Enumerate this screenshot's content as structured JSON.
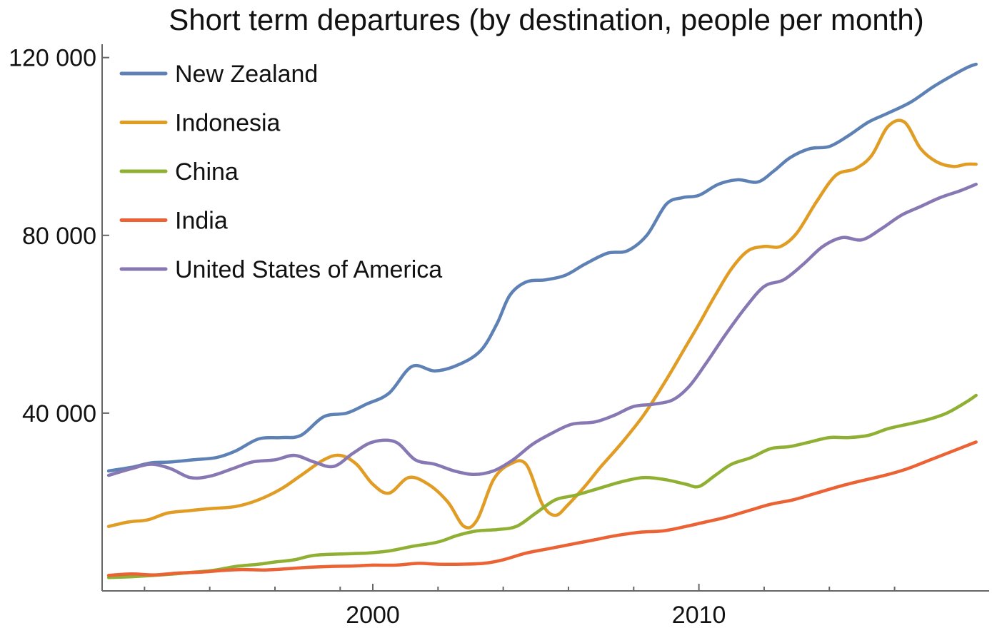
{
  "chart_data": {
    "type": "line",
    "title": "Short term departures (by destination, people per month)",
    "xlabel": "",
    "ylabel": "",
    "xlim": [
      1991.7,
      2018.9
    ],
    "ylim": [
      0,
      123000
    ],
    "x_ticks": [
      {
        "value": 2000,
        "label": "2000"
      },
      {
        "value": 2010,
        "label": "2010"
      }
    ],
    "x_minor_ticks": [
      1993,
      1995,
      1997,
      1999,
      2002,
      2004,
      2006,
      2008,
      2012,
      2014,
      2016
    ],
    "y_ticks": [
      {
        "value": 40000,
        "label": "40 000"
      },
      {
        "value": 80000,
        "label": "80 000"
      },
      {
        "value": 120000,
        "label": "120 000"
      }
    ],
    "grid": false,
    "legend_position": "top-left",
    "series": [
      {
        "name": "New Zealand",
        "color": "#5e81b5",
        "x": [
          1991.9,
          1992.6,
          1993.2,
          1993.8,
          1994.5,
          1995.2,
          1995.8,
          1996.5,
          1997.2,
          1997.8,
          1998.5,
          1999.2,
          1999.8,
          2000.5,
          2001.2,
          2001.9,
          2002.6,
          2003.3,
          2003.8,
          2004.2,
          2004.7,
          2005.3,
          2005.9,
          2006.5,
          2007.2,
          2007.8,
          2008.4,
          2009.0,
          2009.5,
          2010.0,
          2010.6,
          2011.2,
          2011.8,
          2012.3,
          2012.8,
          2013.4,
          2014.0,
          2014.6,
          2015.2,
          2015.8,
          2016.5,
          2017.2,
          2017.9,
          2018.3,
          2018.5
        ],
        "values": [
          27000,
          27800,
          28800,
          29000,
          29500,
          30000,
          31500,
          34200,
          34500,
          35000,
          39200,
          40000,
          42000,
          44500,
          50500,
          49500,
          50800,
          54000,
          60000,
          66500,
          69500,
          70000,
          71000,
          73500,
          76000,
          76500,
          80000,
          87000,
          88500,
          89000,
          91500,
          92500,
          92000,
          94500,
          97500,
          99500,
          100000,
          102500,
          105500,
          107500,
          110000,
          113500,
          116500,
          118000,
          118500
        ]
      },
      {
        "name": "Indonesia",
        "color": "#e19c24",
        "x": [
          1991.9,
          1992.5,
          1993.1,
          1993.7,
          1994.3,
          1995.0,
          1995.8,
          1996.5,
          1997.2,
          1997.8,
          1998.5,
          1999.0,
          1999.5,
          2000.0,
          2000.5,
          2001.1,
          2001.7,
          2002.3,
          2002.8,
          2003.2,
          2003.7,
          2004.2,
          2004.7,
          2005.2,
          2005.6,
          2006.0,
          2006.5,
          2007.0,
          2007.6,
          2008.3,
          2009.0,
          2009.6,
          2010.0,
          2010.5,
          2011.0,
          2011.5,
          2012.0,
          2012.5,
          2013.0,
          2013.6,
          2014.2,
          2014.8,
          2015.3,
          2015.8,
          2016.3,
          2016.8,
          2017.3,
          2017.8,
          2018.2,
          2018.5
        ],
        "values": [
          14500,
          15500,
          16000,
          17500,
          18000,
          18500,
          19000,
          20500,
          23000,
          26000,
          29500,
          30500,
          28500,
          24000,
          22000,
          25500,
          24000,
          20000,
          14500,
          16000,
          25000,
          28500,
          28500,
          19500,
          17000,
          19500,
          23500,
          28000,
          33000,
          39500,
          47500,
          55000,
          60000,
          66500,
          72500,
          76500,
          77500,
          77500,
          80500,
          87500,
          93500,
          95000,
          98000,
          104500,
          105500,
          99500,
          96500,
          95500,
          96000,
          96000
        ]
      },
      {
        "name": "China",
        "color": "#8fb032",
        "x": [
          1991.9,
          1992.6,
          1993.3,
          1993.9,
          1994.5,
          1995.1,
          1995.8,
          1996.5,
          1997.0,
          1997.6,
          1998.2,
          1999.0,
          1999.8,
          2000.5,
          2001.2,
          2002.0,
          2002.6,
          2003.2,
          2003.8,
          2004.4,
          2005.0,
          2005.6,
          2006.2,
          2006.9,
          2007.6,
          2008.3,
          2009.0,
          2009.6,
          2010.0,
          2010.5,
          2011.0,
          2011.6,
          2012.2,
          2012.8,
          2013.4,
          2014.0,
          2014.6,
          2015.2,
          2015.8,
          2016.4,
          2017.0,
          2017.6,
          2018.2,
          2018.5
        ],
        "values": [
          3000,
          3200,
          3500,
          3800,
          4200,
          4600,
          5500,
          6000,
          6500,
          7000,
          8000,
          8300,
          8500,
          9000,
          10000,
          11000,
          12500,
          13500,
          13800,
          14500,
          17500,
          20500,
          21500,
          23000,
          24500,
          25500,
          25000,
          24000,
          23500,
          26000,
          28500,
          30000,
          32000,
          32500,
          33500,
          34500,
          34500,
          35000,
          36500,
          37500,
          38500,
          40000,
          42500,
          44000
        ]
      },
      {
        "name": "India",
        "color": "#eb6235",
        "x": [
          1991.9,
          1992.6,
          1993.3,
          1994.0,
          1994.7,
          1995.4,
          1996.0,
          1996.7,
          1997.4,
          1998.0,
          1998.7,
          1999.4,
          2000.0,
          2000.7,
          2001.4,
          2002.0,
          2002.7,
          2003.4,
          2004.0,
          2004.7,
          2005.4,
          2006.1,
          2006.8,
          2007.5,
          2008.2,
          2008.9,
          2009.6,
          2010.2,
          2010.8,
          2011.5,
          2012.2,
          2012.9,
          2013.6,
          2014.3,
          2015.0,
          2015.7,
          2016.4,
          2017.1,
          2017.8,
          2018.5
        ],
        "values": [
          3500,
          3800,
          3600,
          4000,
          4200,
          4600,
          4800,
          4700,
          5000,
          5300,
          5500,
          5600,
          5800,
          5800,
          6200,
          6000,
          6000,
          6200,
          7000,
          8500,
          9500,
          10500,
          11500,
          12500,
          13200,
          13500,
          14500,
          15500,
          16500,
          18000,
          19500,
          20500,
          22000,
          23500,
          24800,
          26000,
          27500,
          29500,
          31500,
          33500
        ]
      },
      {
        "name": "United States of America",
        "color": "#8778b3",
        "x": [
          1991.9,
          1992.6,
          1993.2,
          1993.8,
          1994.4,
          1995.0,
          1995.7,
          1996.3,
          1997.0,
          1997.6,
          1998.2,
          1998.8,
          1999.4,
          2000.0,
          2000.7,
          2001.3,
          2001.9,
          2002.5,
          2003.1,
          2003.7,
          2004.3,
          2004.9,
          2005.5,
          2006.1,
          2006.8,
          2007.4,
          2008.0,
          2008.6,
          2009.2,
          2009.7,
          2010.2,
          2010.8,
          2011.4,
          2012.0,
          2012.6,
          2013.2,
          2013.8,
          2014.4,
          2015.0,
          2015.6,
          2016.2,
          2016.8,
          2017.4,
          2018.0,
          2018.5
        ],
        "values": [
          26000,
          27500,
          28500,
          27500,
          25500,
          25800,
          27500,
          29000,
          29500,
          30500,
          29000,
          28000,
          31000,
          33500,
          33500,
          29500,
          28500,
          27000,
          26200,
          27000,
          29500,
          33000,
          35500,
          37500,
          38000,
          39500,
          41500,
          42000,
          43000,
          46000,
          51000,
          57500,
          63500,
          68500,
          70000,
          73500,
          77500,
          79500,
          79000,
          81500,
          84500,
          86500,
          88500,
          90000,
          91500
        ]
      }
    ]
  }
}
